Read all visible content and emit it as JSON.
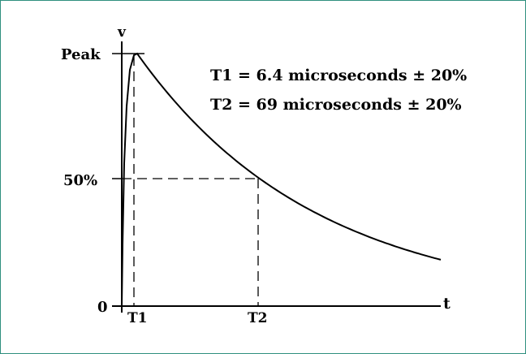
{
  "diagram": {
    "axis_labels": {
      "y": "v",
      "x": "t"
    },
    "y_labels": {
      "peak": "Peak",
      "half": "50%",
      "zero": "0"
    },
    "x_labels": {
      "t1": "T1",
      "t2": "T2"
    },
    "annotations": {
      "t1": "T1 = 6.4 microseconds ± 20%",
      "t2": "T2 = 69 microseconds ± 20%"
    },
    "colors": {
      "frame_border": "#2f8f7f",
      "ink": "#000000",
      "background": "#ffffff"
    }
  },
  "waveform": {
    "t1_us": 6.4,
    "t2_us": 69,
    "tolerance_percent": 20,
    "half_level_percent": 50
  }
}
